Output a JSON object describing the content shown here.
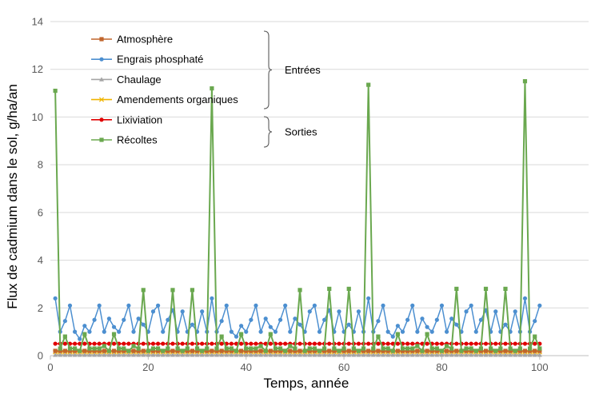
{
  "chart_data": {
    "type": "line",
    "title": "",
    "xlabel": "Temps, année",
    "ylabel": "Flux de cadmium dans le sol, g/ha/an",
    "xlim": [
      0,
      110
    ],
    "ylim": [
      0,
      14
    ],
    "xticks": [
      0,
      20,
      40,
      60,
      80,
      100
    ],
    "yticks": [
      0,
      2,
      4,
      6,
      8,
      10,
      12,
      14
    ],
    "grid": "horizontal",
    "legend_position": "top-left",
    "legend_groups": [
      {
        "label": "Entrées",
        "series": [
          "Atmosphère",
          "Engrais phosphaté",
          "Chaulage",
          "Amendements organiques"
        ]
      },
      {
        "label": "Sorties",
        "series": [
          "Lixiviation",
          "Récoltes"
        ]
      }
    ],
    "series": [
      {
        "name": "Atmosphère",
        "color": "#C0652C",
        "marker": "square",
        "x": [
          1,
          2,
          3,
          4,
          5,
          6,
          7,
          8,
          9,
          10,
          11,
          12,
          13,
          14,
          15,
          16,
          17,
          18,
          19,
          20,
          21,
          22,
          23,
          24,
          25,
          26,
          27,
          28,
          29,
          30,
          31,
          32,
          33,
          34,
          35,
          36,
          37,
          38,
          39,
          40,
          41,
          42,
          43,
          44,
          45,
          46,
          47,
          48,
          49,
          50,
          51,
          52,
          53,
          54,
          55,
          56,
          57,
          58,
          59,
          60,
          61,
          62,
          63,
          64,
          65,
          66,
          67,
          68,
          69,
          70,
          71,
          72,
          73,
          74,
          75,
          76,
          77,
          78,
          79,
          80,
          81,
          82,
          83,
          84,
          85,
          86,
          87,
          88,
          89,
          90,
          91,
          92,
          93,
          94,
          95,
          96,
          97,
          98,
          99,
          100
        ],
        "y": [
          0.2,
          0.2,
          0.2,
          0.2,
          0.2,
          0.2,
          0.2,
          0.2,
          0.2,
          0.2,
          0.2,
          0.2,
          0.2,
          0.2,
          0.2,
          0.2,
          0.2,
          0.2,
          0.2,
          0.2,
          0.2,
          0.2,
          0.2,
          0.2,
          0.2,
          0.2,
          0.2,
          0.2,
          0.2,
          0.2,
          0.2,
          0.2,
          0.2,
          0.2,
          0.2,
          0.2,
          0.2,
          0.2,
          0.2,
          0.2,
          0.2,
          0.2,
          0.2,
          0.2,
          0.2,
          0.2,
          0.2,
          0.2,
          0.2,
          0.2,
          0.2,
          0.2,
          0.2,
          0.2,
          0.2,
          0.2,
          0.2,
          0.2,
          0.2,
          0.2,
          0.2,
          0.2,
          0.2,
          0.2,
          0.2,
          0.2,
          0.2,
          0.2,
          0.2,
          0.2,
          0.2,
          0.2,
          0.2,
          0.2,
          0.2,
          0.2,
          0.2,
          0.2,
          0.2,
          0.2,
          0.2,
          0.2,
          0.2,
          0.2,
          0.2,
          0.2,
          0.2,
          0.2,
          0.2,
          0.2,
          0.2,
          0.2,
          0.2,
          0.2,
          0.2,
          0.2,
          0.2,
          0.2,
          0.2,
          0.2
        ]
      },
      {
        "name": "Engrais phosphaté",
        "color": "#4C8FD0",
        "marker": "circle",
        "x": [
          1,
          2,
          3,
          4,
          5,
          6,
          7,
          8,
          9,
          10,
          11,
          12,
          13,
          14,
          15,
          16,
          17,
          18,
          19,
          20,
          21,
          22,
          23,
          24,
          25,
          26,
          27,
          28,
          29,
          30,
          31,
          32,
          33,
          34,
          35,
          36,
          37,
          38,
          39,
          40,
          41,
          42,
          43,
          44,
          45,
          46,
          47,
          48,
          49,
          50,
          51,
          52,
          53,
          54,
          55,
          56,
          57,
          58,
          59,
          60,
          61,
          62,
          63,
          64,
          65,
          66,
          67,
          68,
          69,
          70,
          71,
          72,
          73,
          74,
          75,
          76,
          77,
          78,
          79,
          80,
          81,
          82,
          83,
          84,
          85,
          86,
          87,
          88,
          89,
          90,
          91,
          92,
          93,
          94,
          95,
          96,
          97,
          98,
          99,
          100
        ],
        "y": [
          2.4,
          1.0,
          1.45,
          2.1,
          1.0,
          0.7,
          1.25,
          1.0,
          1.5,
          2.1,
          1.0,
          1.55,
          1.2,
          1.0,
          1.5,
          2.1,
          1.0,
          1.55,
          1.3,
          1.0,
          1.85,
          2.1,
          1.0,
          1.5,
          1.9,
          1.0,
          1.85,
          1.0,
          1.3,
          1.0,
          1.85,
          1.0,
          2.4,
          1.0,
          1.45,
          2.1,
          1.0,
          0.8,
          1.25,
          1.0,
          1.5,
          2.1,
          1.0,
          1.55,
          1.2,
          1.0,
          1.5,
          2.1,
          1.0,
          1.55,
          1.3,
          1.0,
          1.85,
          2.1,
          1.0,
          1.5,
          1.9,
          1.0,
          1.85,
          1.0,
          1.3,
          1.0,
          1.85,
          1.0,
          2.4,
          1.0,
          1.45,
          2.1,
          1.0,
          0.8,
          1.25,
          1.0,
          1.5,
          2.1,
          1.0,
          1.55,
          1.2,
          1.0,
          1.5,
          2.1,
          1.0,
          1.55,
          1.3,
          1.0,
          1.85,
          2.1,
          1.0,
          1.5,
          1.9,
          1.0,
          1.85,
          1.0,
          1.3,
          1.0,
          1.85,
          1.0,
          2.4,
          1.0,
          1.45,
          2.1
        ]
      },
      {
        "name": "Chaulage",
        "color": "#A5A5A5",
        "marker": "triangle",
        "x": [
          1,
          2,
          3,
          4,
          5,
          6,
          7,
          8,
          9,
          10,
          11,
          12,
          13,
          14,
          15,
          16,
          17,
          18,
          19,
          20,
          21,
          22,
          23,
          24,
          25,
          26,
          27,
          28,
          29,
          30,
          31,
          32,
          33,
          34,
          35,
          36,
          37,
          38,
          39,
          40,
          41,
          42,
          43,
          44,
          45,
          46,
          47,
          48,
          49,
          50,
          51,
          52,
          53,
          54,
          55,
          56,
          57,
          58,
          59,
          60,
          61,
          62,
          63,
          64,
          65,
          66,
          67,
          68,
          69,
          70,
          71,
          72,
          73,
          74,
          75,
          76,
          77,
          78,
          79,
          80,
          81,
          82,
          83,
          84,
          85,
          86,
          87,
          88,
          89,
          90,
          91,
          92,
          93,
          94,
          95,
          96,
          97,
          98,
          99,
          100
        ],
        "y": [
          0.03,
          0.03,
          0.03,
          0.03,
          0.03,
          0.03,
          0.03,
          0.03,
          0.03,
          0.03,
          0.03,
          0.03,
          0.03,
          0.03,
          0.03,
          0.03,
          0.03,
          0.03,
          0.03,
          0.03,
          0.03,
          0.03,
          0.03,
          0.03,
          0.03,
          0.03,
          0.03,
          0.03,
          0.03,
          0.03,
          0.03,
          0.03,
          0.03,
          0.03,
          0.03,
          0.03,
          0.03,
          0.03,
          0.03,
          0.03,
          0.03,
          0.03,
          0.03,
          0.03,
          0.03,
          0.03,
          0.03,
          0.03,
          0.03,
          0.03,
          0.03,
          0.03,
          0.03,
          0.03,
          0.03,
          0.03,
          0.03,
          0.03,
          0.03,
          0.03,
          0.03,
          0.03,
          0.03,
          0.03,
          0.03,
          0.03,
          0.03,
          0.03,
          0.03,
          0.03,
          0.03,
          0.03,
          0.03,
          0.03,
          0.03,
          0.03,
          0.03,
          0.03,
          0.03,
          0.03,
          0.03,
          0.03,
          0.03,
          0.03,
          0.03,
          0.03,
          0.03,
          0.03,
          0.03,
          0.03,
          0.03,
          0.03,
          0.03,
          0.03,
          0.03,
          0.03,
          0.03,
          0.03,
          0.03,
          0.03
        ]
      },
      {
        "name": "Amendements organiques",
        "color": "#F0B400",
        "marker": "x",
        "x": [
          1,
          2,
          3,
          4,
          5,
          6,
          7,
          8,
          9,
          10,
          11,
          12,
          13,
          14,
          15,
          16,
          17,
          18,
          19,
          20,
          21,
          22,
          23,
          24,
          25,
          26,
          27,
          28,
          29,
          30,
          31,
          32,
          33,
          34,
          35,
          36,
          37,
          38,
          39,
          40,
          41,
          42,
          43,
          44,
          45,
          46,
          47,
          48,
          49,
          50,
          51,
          52,
          53,
          54,
          55,
          56,
          57,
          58,
          59,
          60,
          61,
          62,
          63,
          64,
          65,
          66,
          67,
          68,
          69,
          70,
          71,
          72,
          73,
          74,
          75,
          76,
          77,
          78,
          79,
          80,
          81,
          82,
          83,
          84,
          85,
          86,
          87,
          88,
          89,
          90,
          91,
          92,
          93,
          94,
          95,
          96,
          97,
          98,
          99,
          100
        ],
        "y": [
          0.15,
          0.15,
          0.15,
          0.15,
          0.15,
          0.15,
          0.15,
          0.15,
          0.15,
          0.15,
          0.15,
          0.15,
          0.15,
          0.15,
          0.15,
          0.15,
          0.15,
          0.15,
          0.15,
          0.15,
          0.15,
          0.15,
          0.15,
          0.15,
          0.15,
          0.15,
          0.15,
          0.15,
          0.15,
          0.15,
          0.15,
          0.15,
          0.15,
          0.15,
          0.15,
          0.15,
          0.15,
          0.15,
          0.15,
          0.15,
          0.15,
          0.15,
          0.15,
          0.15,
          0.15,
          0.15,
          0.15,
          0.15,
          0.15,
          0.15,
          0.15,
          0.15,
          0.15,
          0.15,
          0.15,
          0.15,
          0.15,
          0.15,
          0.15,
          0.15,
          0.15,
          0.15,
          0.15,
          0.15,
          0.15,
          0.15,
          0.15,
          0.15,
          0.15,
          0.15,
          0.15,
          0.15,
          0.15,
          0.15,
          0.15,
          0.15,
          0.15,
          0.15,
          0.15,
          0.15,
          0.15,
          0.15,
          0.15,
          0.15,
          0.15,
          0.15,
          0.15,
          0.15,
          0.15,
          0.15,
          0.15,
          0.15,
          0.15,
          0.15,
          0.15,
          0.15,
          0.15,
          0.15,
          0.15,
          0.15
        ]
      },
      {
        "name": "Lixiviation",
        "color": "#E00000",
        "marker": "circle",
        "x": [
          1,
          2,
          3,
          4,
          5,
          6,
          7,
          8,
          9,
          10,
          11,
          12,
          13,
          14,
          15,
          16,
          17,
          18,
          19,
          20,
          21,
          22,
          23,
          24,
          25,
          26,
          27,
          28,
          29,
          30,
          31,
          32,
          33,
          34,
          35,
          36,
          37,
          38,
          39,
          40,
          41,
          42,
          43,
          44,
          45,
          46,
          47,
          48,
          49,
          50,
          51,
          52,
          53,
          54,
          55,
          56,
          57,
          58,
          59,
          60,
          61,
          62,
          63,
          64,
          65,
          66,
          67,
          68,
          69,
          70,
          71,
          72,
          73,
          74,
          75,
          76,
          77,
          78,
          79,
          80,
          81,
          82,
          83,
          84,
          85,
          86,
          87,
          88,
          89,
          90,
          91,
          92,
          93,
          94,
          95,
          96,
          97,
          98,
          99,
          100
        ],
        "y": [
          0.5,
          0.5,
          0.5,
          0.5,
          0.5,
          0.5,
          0.5,
          0.5,
          0.5,
          0.5,
          0.5,
          0.5,
          0.5,
          0.5,
          0.5,
          0.5,
          0.5,
          0.5,
          0.5,
          0.5,
          0.5,
          0.5,
          0.5,
          0.5,
          0.5,
          0.5,
          0.5,
          0.5,
          0.5,
          0.5,
          0.5,
          0.5,
          0.5,
          0.5,
          0.5,
          0.5,
          0.5,
          0.5,
          0.5,
          0.5,
          0.5,
          0.5,
          0.5,
          0.5,
          0.5,
          0.5,
          0.5,
          0.5,
          0.5,
          0.5,
          0.5,
          0.5,
          0.5,
          0.5,
          0.5,
          0.5,
          0.5,
          0.5,
          0.5,
          0.5,
          0.5,
          0.5,
          0.5,
          0.5,
          0.5,
          0.5,
          0.5,
          0.5,
          0.5,
          0.5,
          0.5,
          0.5,
          0.5,
          0.5,
          0.5,
          0.5,
          0.5,
          0.5,
          0.5,
          0.5,
          0.5,
          0.5,
          0.5,
          0.5,
          0.5,
          0.5,
          0.5,
          0.5,
          0.5,
          0.5,
          0.5,
          0.5,
          0.5,
          0.5,
          0.5,
          0.5,
          0.5,
          0.5,
          0.5,
          0.5
        ]
      },
      {
        "name": "Récoltes",
        "color": "#6AA84F",
        "marker": "square",
        "x": [
          1,
          2,
          3,
          4,
          5,
          6,
          7,
          8,
          9,
          10,
          11,
          12,
          13,
          14,
          15,
          16,
          17,
          18,
          19,
          20,
          21,
          22,
          23,
          24,
          25,
          26,
          27,
          28,
          29,
          30,
          31,
          32,
          33,
          34,
          35,
          36,
          37,
          38,
          39,
          40,
          41,
          42,
          43,
          44,
          45,
          46,
          47,
          48,
          49,
          50,
          51,
          52,
          53,
          54,
          55,
          56,
          57,
          58,
          59,
          60,
          61,
          62,
          63,
          64,
          65,
          66,
          67,
          68,
          69,
          70,
          71,
          72,
          73,
          74,
          75,
          76,
          77,
          78,
          79,
          80,
          81,
          82,
          83,
          84,
          85,
          86,
          87,
          88,
          89,
          90,
          91,
          92,
          93,
          94,
          95,
          96,
          97,
          98,
          99,
          100
        ],
        "y": [
          11.1,
          0.3,
          0.8,
          0.3,
          0.3,
          0.2,
          0.9,
          0.3,
          0.3,
          0.3,
          0.4,
          0.2,
          0.9,
          0.3,
          0.3,
          0.2,
          0.4,
          0.3,
          2.75,
          0.2,
          0.3,
          0.3,
          0.2,
          0.3,
          2.75,
          0.3,
          0.2,
          0.3,
          2.75,
          0.3,
          0.2,
          0.3,
          11.2,
          0.3,
          0.8,
          0.3,
          0.3,
          0.2,
          0.9,
          0.3,
          0.3,
          0.3,
          0.4,
          0.2,
          0.9,
          0.3,
          0.3,
          0.2,
          0.4,
          0.3,
          2.75,
          0.2,
          0.3,
          0.3,
          0.2,
          0.3,
          2.8,
          0.3,
          0.2,
          0.3,
          2.8,
          0.3,
          0.2,
          0.3,
          11.35,
          0.3,
          0.8,
          0.3,
          0.3,
          0.2,
          0.9,
          0.3,
          0.3,
          0.3,
          0.4,
          0.2,
          0.9,
          0.3,
          0.3,
          0.2,
          0.4,
          0.3,
          2.8,
          0.2,
          0.3,
          0.3,
          0.2,
          0.3,
          2.8,
          0.3,
          0.2,
          0.3,
          2.8,
          0.3,
          0.2,
          0.3,
          11.5,
          0.3,
          0.8,
          0.3
        ]
      }
    ]
  }
}
